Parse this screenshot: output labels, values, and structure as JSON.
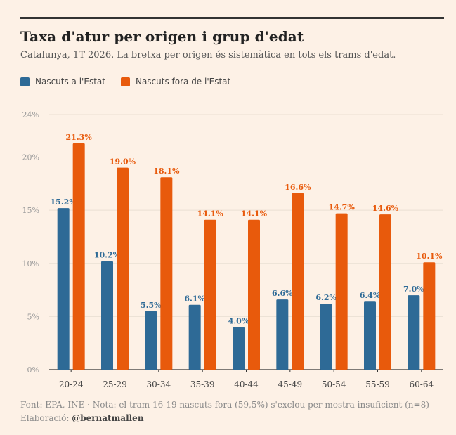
{
  "title": "Taxa d'atur per origen i grup d'edat",
  "subtitle": "Catalunya, 1T 2026. La bretxa per origen és sistemàtica en tots els trams d'edat.",
  "footer": {
    "note": "Font: EPA, INE · Nota: el tram 16-19 nascuts fora (59,5%) s'exclou per mostra insuficient (n=8)",
    "credit_label": "Elaboració:",
    "credit_handle": "@bernatmallen"
  },
  "colors": {
    "series_1": "#2e6a96",
    "series_2": "#e85a0c",
    "grid": "#eadfd3",
    "axis": "#333333"
  },
  "chart_data": {
    "type": "bar",
    "categories": [
      "20-24",
      "25-29",
      "30-34",
      "35-39",
      "40-44",
      "45-49",
      "50-54",
      "55-59",
      "60-64"
    ],
    "series": [
      {
        "name": "Nascuts a l'Estat",
        "values": [
          15.2,
          10.2,
          5.5,
          6.1,
          4.0,
          6.6,
          6.2,
          6.4,
          7.0
        ],
        "labels": [
          "15.2%",
          "10.2%",
          "5.5%",
          "6.1%",
          "4.0%",
          "6.6%",
          "6.2%",
          "6.4%",
          "7.0%"
        ]
      },
      {
        "name": "Nascuts fora de l'Estat",
        "values": [
          21.3,
          19.0,
          18.1,
          14.1,
          14.1,
          16.6,
          14.7,
          14.6,
          10.1
        ],
        "labels": [
          "21.3%",
          "19.0%",
          "18.1%",
          "14.1%",
          "14.1%",
          "16.6%",
          "14.7%",
          "14.6%",
          "10.1%"
        ]
      }
    ],
    "ylim": [
      0,
      24
    ],
    "yticks": [
      0,
      5,
      10,
      15,
      20,
      24
    ],
    "ytick_labels": [
      "0%",
      "5%",
      "10%",
      "15%",
      "20%",
      "24%"
    ],
    "grid": true,
    "legend_position": "top-left"
  }
}
